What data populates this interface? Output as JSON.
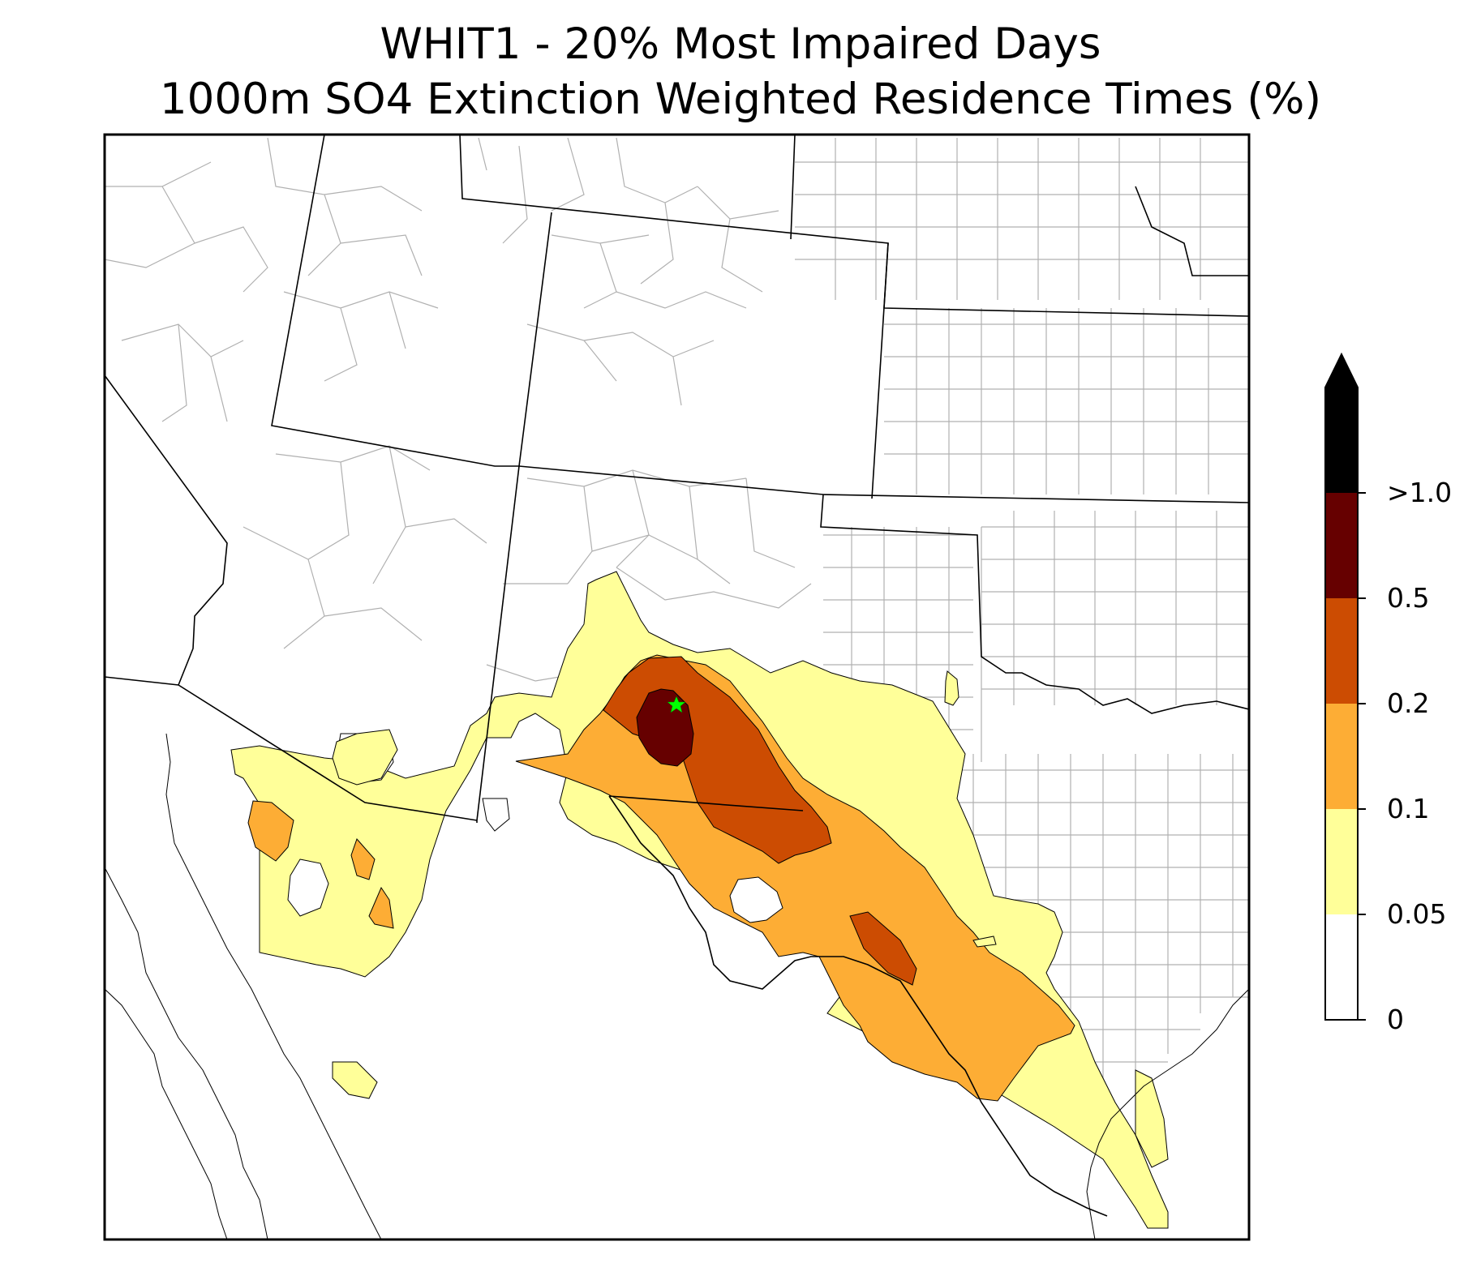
{
  "title": {
    "line1": "WHIT1 - 20% Most Impaired Days",
    "line2": "1000m SO4 Extinction Weighted Residence Times (%)"
  },
  "map": {
    "site_code": "WHIT1",
    "site_marker_icon": "green-star-icon",
    "site_marker_color": "#00ff00",
    "state_line_color": "#000000",
    "county_line_color": "#aaaaaa",
    "contour_outline_color": "#000000"
  },
  "colorbar": {
    "ticks": [
      "0",
      "0.05",
      "0.1",
      "0.2",
      "0.5",
      ">1.0"
    ],
    "levels": [
      {
        "range": "0 - 0.05",
        "color": "#ffffff"
      },
      {
        "range": "0.05 - 0.1",
        "color": "#ffff99"
      },
      {
        "range": "0.1 - 0.2",
        "color": "#fdad35"
      },
      {
        "range": "0.2 - 0.5",
        "color": "#cc4c02"
      },
      {
        "range": "0.5 - 1.0",
        "color": "#660000"
      },
      {
        "range": "> 1.0",
        "color": "#000000"
      }
    ],
    "extend": "max"
  }
}
